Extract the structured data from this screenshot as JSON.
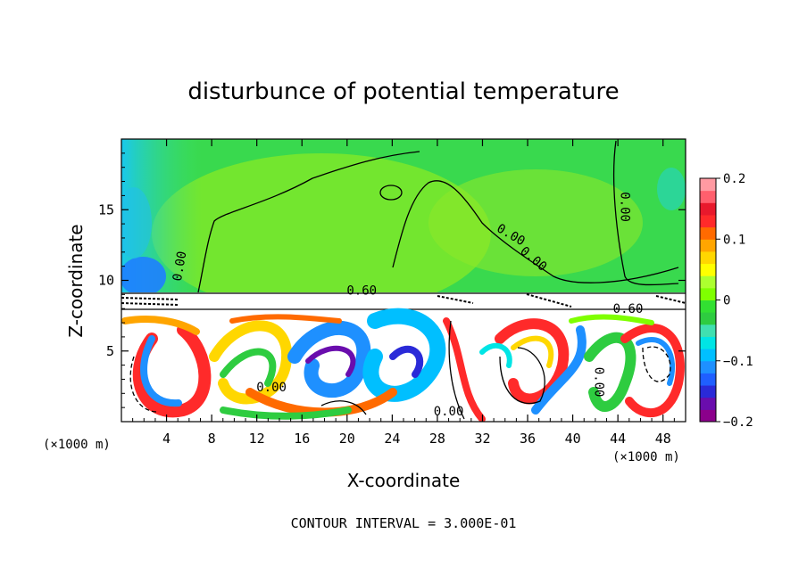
{
  "chart_data": {
    "type": "heatmap",
    "title": "disturbunce of potential temperature",
    "xlabel": "X-coordinate",
    "ylabel": "Z-coordinate",
    "x_unit_label": "(×1000 m)",
    "x_unit_label_right": "(×1000 m)",
    "xlim": [
      0,
      50
    ],
    "ylim": [
      0,
      20
    ],
    "x_ticks": [
      4,
      8,
      12,
      16,
      20,
      24,
      28,
      32,
      36,
      40,
      44,
      48
    ],
    "y_ticks": [
      5,
      10,
      15
    ],
    "colorbar": {
      "range": [
        -0.2,
        0.2
      ],
      "tick_values": [
        -0.2,
        -0.1,
        0,
        0.1,
        0.2
      ],
      "tick_labels": [
        "−0.2",
        "−0.1",
        "0",
        "0.1",
        "0.2"
      ],
      "colors": [
        "#8b008b",
        "#6a0dad",
        "#2a2ad8",
        "#1f5fff",
        "#1e90ff",
        "#00bfff",
        "#00e5e5",
        "#40e0b0",
        "#2ecc40",
        "#32e032",
        "#7fff00",
        "#adff2f",
        "#ffff00",
        "#ffd700",
        "#ffa500",
        "#ff6a00",
        "#ff2a2a",
        "#e8192c",
        "#ff5f6d",
        "#ff9aa2"
      ]
    },
    "contour_labels": [
      {
        "text": "0.00",
        "x": 5.2,
        "z": 11.0,
        "rotate": -80
      },
      {
        "text": "0.00",
        "x": 34.5,
        "z": 13.2,
        "rotate": 30
      },
      {
        "text": "0.00",
        "x": 36.5,
        "z": 11.5,
        "rotate": 40
      },
      {
        "text": "0.00",
        "x": 44.6,
        "z": 15.2,
        "rotate": 90
      },
      {
        "text": "0.60",
        "x": 21.3,
        "z": 9.25,
        "rotate": 0
      },
      {
        "text": "0.60",
        "x": 44.9,
        "z": 7.95,
        "rotate": 0
      },
      {
        "text": "0.00",
        "x": 13.3,
        "z": 2.4,
        "rotate": 0
      },
      {
        "text": "0.00",
        "x": 29.0,
        "z": 0.7,
        "rotate": 0
      },
      {
        "text": "0.00",
        "x": 42.3,
        "z": 2.8,
        "rotate": 90
      }
    ],
    "contour_interval_note": "CONTOUR INTERVAL = 3.000E-01"
  }
}
